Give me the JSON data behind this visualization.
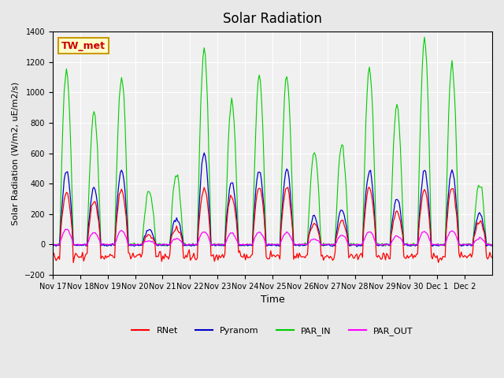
{
  "title": "Solar Radiation",
  "ylabel": "Solar Radiation (W/m2, uE/m2/s)",
  "xlabel": "Time",
  "ylim": [
    -200,
    1400
  ],
  "yticks": [
    -200,
    0,
    200,
    400,
    600,
    800,
    1000,
    1200,
    1400
  ],
  "background_color": "#e8e8e8",
  "plot_bg_color": "#f0f0f0",
  "annotation_text": "TW_met",
  "annotation_bg": "#ffffcc",
  "annotation_border": "#cc9900",
  "annotation_text_color": "#cc0000",
  "colors": {
    "RNet": "#ff0000",
    "Pyranom": "#0000cc",
    "PAR_IN": "#00cc00",
    "PAR_OUT": "#ff00ff"
  },
  "x_tick_labels": [
    "Nov 17",
    "Nov 18",
    "Nov 19",
    "Nov 20",
    "Nov 21",
    "Nov 22",
    "Nov 23",
    "Nov 24",
    "Nov 25",
    "Nov 26",
    "Nov 27",
    "Nov 28",
    "Nov 29",
    "Nov 30",
    "Dec 1",
    "Dec 2"
  ],
  "n_days": 16,
  "seed": 42,
  "par_in_peaks": [
    1150,
    870,
    1110,
    360,
    450,
    1290,
    940,
    1110,
    1100,
    600,
    640,
    1150,
    920,
    1350,
    1180,
    400
  ],
  "pyranom_peaks": [
    490,
    370,
    490,
    100,
    170,
    610,
    410,
    490,
    490,
    180,
    230,
    490,
    300,
    490,
    490,
    200
  ],
  "rnet_peaks": [
    340,
    290,
    360,
    60,
    110,
    370,
    320,
    380,
    370,
    140,
    150,
    370,
    220,
    360,
    370,
    150
  ],
  "par_out_peaks": [
    100,
    80,
    90,
    25,
    40,
    85,
    75,
    80,
    80,
    35,
    60,
    85,
    55,
    85,
    90,
    40
  ]
}
